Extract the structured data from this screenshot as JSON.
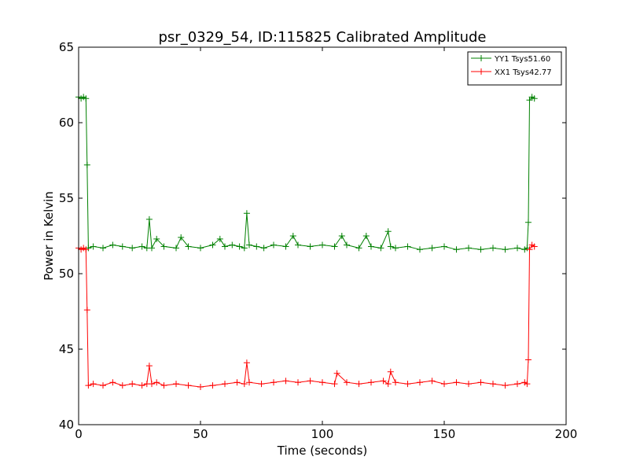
{
  "chart_data": {
    "type": "line",
    "title": "psr_0329_54, ID:115825 Calibrated Amplitude",
    "xlabel": "Time (seconds)",
    "ylabel": "Power in Kelvin",
    "xlim": [
      0,
      200
    ],
    "ylim": [
      40,
      65
    ],
    "xticks": [
      0,
      50,
      100,
      150,
      200
    ],
    "yticks": [
      40,
      45,
      50,
      55,
      60,
      65
    ],
    "grid": false,
    "legend_position": "top-right",
    "series": [
      {
        "name": "YY1 Tsys51.60",
        "color": "#008000",
        "marker": "+",
        "x": [
          0,
          1,
          2,
          3,
          3.5,
          4,
          6,
          10,
          14,
          18,
          22,
          26,
          28,
          29,
          30,
          32,
          35,
          40,
          42,
          45,
          50,
          55,
          58,
          60,
          63,
          66,
          68,
          69,
          70,
          73,
          76,
          80,
          85,
          88,
          90,
          95,
          100,
          105,
          108,
          110,
          115,
          118,
          120,
          124,
          127,
          128,
          130,
          135,
          140,
          145,
          150,
          155,
          160,
          165,
          170,
          175,
          180,
          183,
          184,
          184.5,
          185,
          186,
          187
        ],
        "y": [
          61.7,
          61.6,
          61.7,
          61.6,
          57.2,
          51.7,
          51.8,
          51.7,
          51.9,
          51.8,
          51.7,
          51.8,
          51.7,
          53.6,
          51.7,
          52.3,
          51.8,
          51.7,
          52.4,
          51.8,
          51.7,
          51.9,
          52.3,
          51.8,
          51.9,
          51.8,
          51.7,
          54.0,
          51.9,
          51.8,
          51.7,
          51.9,
          51.8,
          52.5,
          51.9,
          51.8,
          51.9,
          51.8,
          52.5,
          51.9,
          51.7,
          52.5,
          51.8,
          51.7,
          52.8,
          51.8,
          51.7,
          51.8,
          51.6,
          51.7,
          51.8,
          51.6,
          51.7,
          51.6,
          51.7,
          51.6,
          51.7,
          51.6,
          51.7,
          53.4,
          61.5,
          61.7,
          61.6
        ]
      },
      {
        "name": "XX1 Tsys42.77",
        "color": "#ff0000",
        "marker": "+",
        "x": [
          0,
          1,
          2,
          3,
          3.5,
          4,
          6,
          10,
          14,
          18,
          22,
          26,
          28,
          29,
          30,
          32,
          35,
          40,
          45,
          50,
          55,
          60,
          65,
          68,
          69,
          70,
          75,
          80,
          85,
          90,
          95,
          100,
          105,
          106,
          110,
          115,
          120,
          125,
          127,
          128,
          130,
          135,
          140,
          145,
          150,
          155,
          160,
          165,
          170,
          175,
          180,
          183,
          184,
          184.5,
          185,
          186,
          187
        ],
        "y": [
          51.7,
          51.6,
          51.7,
          51.6,
          47.6,
          42.6,
          42.7,
          42.6,
          42.8,
          42.6,
          42.7,
          42.6,
          42.7,
          43.9,
          42.7,
          42.8,
          42.6,
          42.7,
          42.6,
          42.5,
          42.6,
          42.7,
          42.8,
          42.7,
          44.1,
          42.8,
          42.7,
          42.8,
          42.9,
          42.8,
          42.9,
          42.8,
          42.7,
          43.4,
          42.8,
          42.7,
          42.8,
          42.9,
          42.7,
          43.5,
          42.8,
          42.7,
          42.8,
          42.9,
          42.7,
          42.8,
          42.7,
          42.8,
          42.7,
          42.6,
          42.7,
          42.8,
          42.7,
          44.3,
          51.6,
          51.9,
          51.8
        ]
      }
    ]
  }
}
